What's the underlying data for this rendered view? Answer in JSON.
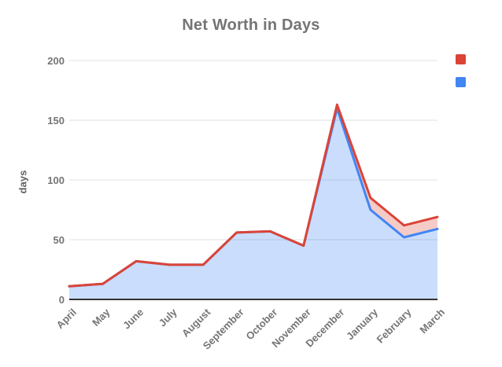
{
  "title": "Net Worth in Days",
  "y_axis": {
    "title": "days",
    "tick_labels": [
      "0",
      "50",
      "100",
      "150",
      "200"
    ]
  },
  "x_axis": {
    "tick_labels": [
      "April",
      "May",
      "June",
      "July",
      "August",
      "September",
      "October",
      "November",
      "December",
      "January",
      "February",
      "March"
    ]
  },
  "legend": {
    "items": [
      {
        "series": "series-1",
        "label": "",
        "color": "#db4437"
      },
      {
        "series": "series-2",
        "label": "",
        "color": "#4285f4"
      }
    ]
  },
  "colors": {
    "red_line": "#db4437",
    "red_fill": "rgba(219,68,55,0.28)",
    "blue_line": "#4285f4",
    "blue_fill": "rgba(66,133,244,0.28)",
    "gridline": "#e0e0e0",
    "baseline": "#333333",
    "axis_text": "#757575",
    "title_text": "#757575"
  },
  "chart_data": {
    "type": "area",
    "title": "Net Worth in Days",
    "xlabel": "",
    "ylabel": "days",
    "categories": [
      "April",
      "May",
      "June",
      "July",
      "August",
      "September",
      "October",
      "November",
      "December",
      "January",
      "February",
      "March"
    ],
    "series": [
      {
        "name": "net-worth-upper-red",
        "color": "#db4437",
        "values": [
          11,
          13,
          32,
          29,
          29,
          56,
          57,
          45,
          163,
          85,
          62,
          69
        ]
      },
      {
        "name": "net-worth-lower-blue",
        "color": "#4285f4",
        "values": [
          11,
          13,
          32,
          29,
          29,
          56,
          57,
          45,
          160,
          75,
          52,
          59
        ]
      }
    ],
    "ylim": [
      0,
      200
    ],
    "y_ticks": [
      0,
      50,
      100,
      150,
      200
    ],
    "grid": true,
    "legend_position": "top-right",
    "legend_labels_visible": false
  }
}
